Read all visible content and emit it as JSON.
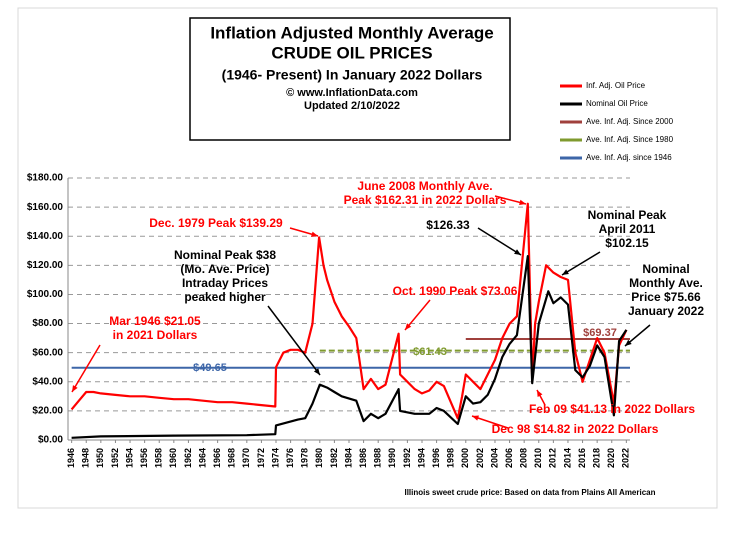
{
  "chart_data": {
    "type": "line",
    "title_lines": [
      "Inflation Adjusted Monthly Average",
      "CRUDE OIL PRICES",
      "(1946- Present) In January 2022 Dollars",
      "© www.InflationData.com",
      "Updated 2/10/2022"
    ],
    "xlim": [
      1945.5,
      2022.5
    ],
    "xticks": [
      1946,
      1948,
      1950,
      1952,
      1954,
      1956,
      1958,
      1960,
      1962,
      1964,
      1966,
      1968,
      1970,
      1972,
      1974,
      1976,
      1978,
      1980,
      1982,
      1984,
      1986,
      1988,
      1990,
      1992,
      1994,
      1996,
      1998,
      2000,
      2002,
      2004,
      2006,
      2008,
      2010,
      2012,
      2014,
      2016,
      2018,
      2020,
      2022
    ],
    "ylim": [
      0,
      180
    ],
    "yticks": [
      {
        "value": 0,
        "label": "$0.00"
      },
      {
        "value": 20,
        "label": "$20.00"
      },
      {
        "value": 40,
        "label": "$40.00"
      },
      {
        "value": 60,
        "label": "$60.00"
      },
      {
        "value": 80,
        "label": "$80.00"
      },
      {
        "value": 100,
        "label": "$100.00"
      },
      {
        "value": 120,
        "label": "$120.00"
      },
      {
        "value": 140,
        "label": "$140.00"
      },
      {
        "value": 160,
        "label": "$160.00"
      },
      {
        "value": 180,
        "label": "$180.00"
      }
    ],
    "grid": true,
    "legend": "top-right",
    "series": [
      {
        "name": "Inf. Adj. Oil Price",
        "color": "#ff0000",
        "x": [
          1946,
          1947,
          1948,
          1949,
          1950,
          1952,
          1954,
          1956,
          1958,
          1960,
          1962,
          1964,
          1966,
          1968,
          1970,
          1972,
          1973.9,
          1974,
          1975,
          1976,
          1977,
          1978,
          1979,
          1979.9,
          1980.5,
          1981,
          1982,
          1983,
          1984,
          1985,
          1986,
          1987,
          1988,
          1989,
          1990.8,
          1991,
          1992,
          1993,
          1994,
          1995,
          1996,
          1997,
          1998.9,
          1999.5,
          2000,
          2001,
          2002,
          2003,
          2004,
          2005,
          2006,
          2007,
          2008.5,
          2009.1,
          2009.5,
          2010,
          2011,
          2012,
          2013,
          2014,
          2015,
          2016,
          2017,
          2018,
          2019,
          2020.3,
          2021,
          2022
        ],
        "values": [
          21.05,
          27,
          33,
          33,
          32,
          31,
          30,
          30,
          29,
          28,
          28,
          27,
          26,
          26,
          25,
          24,
          23,
          50,
          60,
          62,
          62,
          60,
          80,
          139.29,
          120,
          110,
          95,
          85,
          78,
          70,
          35,
          42,
          35,
          38,
          73.06,
          45,
          40,
          35,
          32,
          34,
          40,
          37,
          14.82,
          30,
          45,
          40,
          35,
          45,
          55,
          70,
          80,
          85,
          162.31,
          41.13,
          80,
          95,
          120,
          115,
          112,
          110,
          60,
          40,
          55,
          70,
          60,
          25,
          65,
          75.66
        ]
      },
      {
        "name": "Nominal Oil Price",
        "color": "#000000",
        "x": [
          1946,
          1950,
          1960,
          1970,
          1973.9,
          1974,
          1977,
          1978,
          1979,
          1980,
          1981,
          1982,
          1983,
          1985,
          1986,
          1987,
          1988,
          1989,
          1990.8,
          1991,
          1993,
          1995,
          1996,
          1997,
          1998.9,
          2000,
          2001,
          2002,
          2003,
          2004,
          2005,
          2006,
          2007,
          2008.5,
          2009.1,
          2010,
          2011.3,
          2012,
          2013,
          2014,
          2015,
          2016,
          2017,
          2018,
          2019,
          2020.3,
          2021,
          2022
        ],
        "values": [
          1.5,
          2.5,
          3,
          3.3,
          4,
          10,
          14,
          15,
          25,
          38,
          36,
          33,
          30,
          27,
          13,
          18,
          15,
          18,
          35,
          20,
          18,
          18,
          22,
          20,
          11,
          30,
          25,
          26,
          31,
          42,
          57,
          66,
          72,
          126.33,
          39,
          80,
          102.15,
          94,
          98,
          93,
          48,
          43,
          51,
          65,
          57,
          17,
          68,
          75.66
        ]
      }
    ],
    "averages": [
      {
        "name": "Ave. Inf. Adj. Since 2000",
        "color": "#a0403c",
        "value": 69.37,
        "value_label": "$69.37",
        "start": 2000
      },
      {
        "name": "Ave. Inf. Adj. Since 1980",
        "color": "#7f9a2e",
        "value": 61.43,
        "value_label": "$61.43",
        "start": 1980
      },
      {
        "name": "Ave. Inf. Adj. since 1946",
        "color": "#3d66a8",
        "value": 49.65,
        "value_label": "$49.65",
        "start": 1946
      }
    ],
    "annotations": [
      {
        "lines": [
          "Mar 1946 $21.05",
          "in 2021 Dollars"
        ],
        "color": "#ff0000"
      },
      {
        "lines": [
          "Dec. 1979 Peak $139.29"
        ],
        "color": "#ff0000"
      },
      {
        "lines": [
          "Nominal Peak $38",
          "(Mo. Ave. Price)",
          "Intraday Prices",
          "peaked higher"
        ],
        "color": "#000000"
      },
      {
        "lines": [
          "June 2008 Monthly Ave.",
          "Peak $162.31 in 2022 Dollars"
        ],
        "color": "#ff0000"
      },
      {
        "lines": [
          "$126.33"
        ],
        "color": "#000000"
      },
      {
        "lines": [
          "Oct. 1990 Peak $73.06"
        ],
        "color": "#ff0000"
      },
      {
        "lines": [
          "Nominal Peak",
          "April 2011",
          "$102.15"
        ],
        "color": "#000000"
      },
      {
        "lines": [
          "Nominal",
          "Monthly Ave.",
          "Price $75.66",
          "January 2022"
        ],
        "color": "#000000"
      },
      {
        "lines": [
          "Feb 09 $41.13 in 2022 Dollars"
        ],
        "color": "#ff0000"
      },
      {
        "lines": [
          "Dec 98 $14.82 in 2022 Dollars"
        ],
        "color": "#ff0000"
      }
    ],
    "footnote": "Illinois sweet crude price: Based on data from Plains All American"
  }
}
